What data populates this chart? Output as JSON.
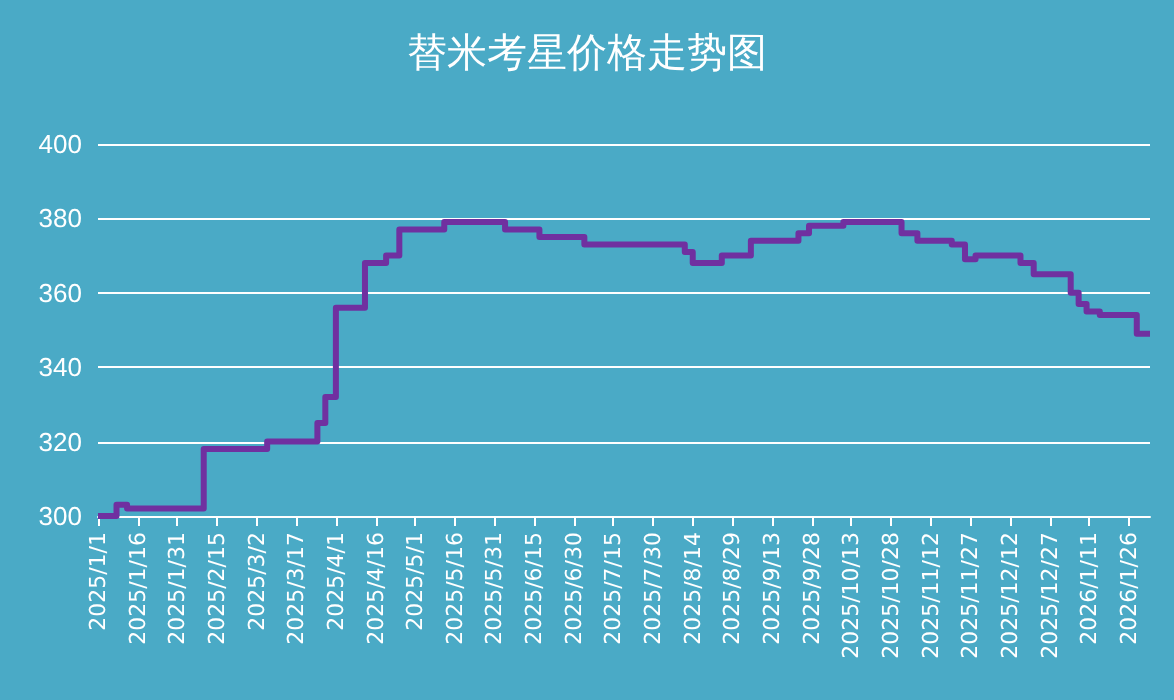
{
  "chart_data": {
    "type": "step",
    "title": "替米考星价格走势图",
    "x": [
      "2025-01-01",
      "2025-01-08",
      "2025-01-12",
      "2025-02-10",
      "2025-03-06",
      "2025-03-25",
      "2025-03-28",
      "2025-04-01",
      "2025-04-12",
      "2025-04-20",
      "2025-04-25",
      "2025-05-12",
      "2025-06-04",
      "2025-06-17",
      "2025-07-04",
      "2025-08-11",
      "2025-08-14",
      "2025-08-25",
      "2025-09-05",
      "2025-09-23",
      "2025-09-27",
      "2025-10-10",
      "2025-11-01",
      "2025-11-07",
      "2025-11-20",
      "2025-11-25",
      "2025-11-29",
      "2025-12-16",
      "2025-12-21",
      "2026-01-04",
      "2026-01-07",
      "2026-01-10",
      "2026-01-15",
      "2026-01-29",
      "2026-02-03"
    ],
    "series": [
      {
        "color": "#7030a0",
        "values": [
          300,
          303,
          302,
          318,
          320,
          325,
          332,
          356,
          368,
          370,
          377,
          379,
          377,
          375,
          373,
          371,
          368,
          370,
          374,
          376,
          378,
          379,
          376,
          374,
          373,
          369,
          370,
          368,
          365,
          360,
          357,
          355,
          354,
          349,
          349
        ]
      }
    ],
    "xlim": [
      "2025-01-01",
      "2026-02-03"
    ],
    "xticks": [
      {
        "value": "2025-01-01",
        "label": "2025/1/1"
      },
      {
        "value": "2025-01-16",
        "label": "2025/1/16"
      },
      {
        "value": "2025-01-31",
        "label": "2025/1/31"
      },
      {
        "value": "2025-02-15",
        "label": "2025/2/15"
      },
      {
        "value": "2025-03-02",
        "label": "2025/3/2"
      },
      {
        "value": "2025-03-17",
        "label": "2025/3/17"
      },
      {
        "value": "2025-04-01",
        "label": "2025/4/1"
      },
      {
        "value": "2025-04-16",
        "label": "2025/4/16"
      },
      {
        "value": "2025-05-01",
        "label": "2025/5/1"
      },
      {
        "value": "2025-05-16",
        "label": "2025/5/16"
      },
      {
        "value": "2025-05-31",
        "label": "2025/5/31"
      },
      {
        "value": "2025-06-15",
        "label": "2025/6/15"
      },
      {
        "value": "2025-06-30",
        "label": "2025/6/30"
      },
      {
        "value": "2025-07-15",
        "label": "2025/7/15"
      },
      {
        "value": "2025-07-30",
        "label": "2025/7/30"
      },
      {
        "value": "2025-08-14",
        "label": "2025/8/14"
      },
      {
        "value": "2025-08-29",
        "label": "2025/8/29"
      },
      {
        "value": "2025-09-13",
        "label": "2025/9/13"
      },
      {
        "value": "2025-09-28",
        "label": "2025/9/28"
      },
      {
        "value": "2025-10-13",
        "label": "2025/10/13"
      },
      {
        "value": "2025-10-28",
        "label": "2025/10/28"
      },
      {
        "value": "2025-11-12",
        "label": "2025/11/12"
      },
      {
        "value": "2025-11-27",
        "label": "2025/11/27"
      },
      {
        "value": "2025-12-12",
        "label": "2025/12/12"
      },
      {
        "value": "2025-12-27",
        "label": "2025/12/27"
      },
      {
        "value": "2026-01-11",
        "label": "2026/1/11"
      },
      {
        "value": "2026-01-26",
        "label": "2026/1/26"
      }
    ],
    "ylim": [
      300,
      400
    ],
    "yticks": [
      300,
      320,
      340,
      360,
      380,
      400
    ],
    "grid": "y",
    "marker": "none",
    "line_style": "solid"
  }
}
